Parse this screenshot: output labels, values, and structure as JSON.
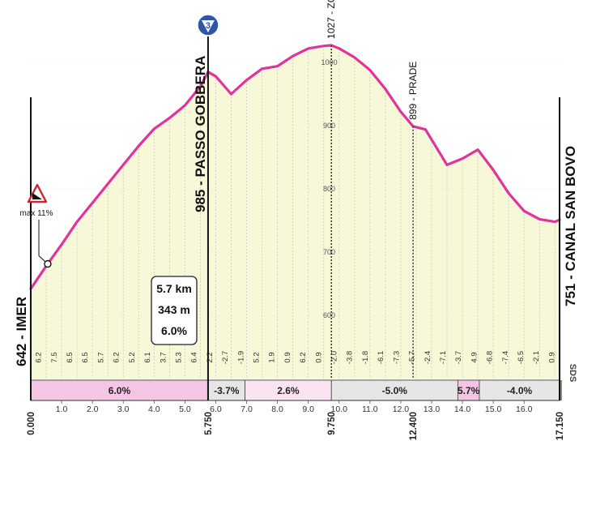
{
  "chart_data": {
    "type": "area",
    "xlabel": "",
    "ylabel": "",
    "xlim": [
      0,
      17.15
    ],
    "ylim": [
      500,
      1100
    ],
    "y_ticks": [
      600,
      700,
      800,
      900,
      1000
    ],
    "y_tick_labels": [
      "600",
      "700",
      "800",
      "900",
      "1000"
    ],
    "x_ticks": [
      1,
      2,
      3,
      4,
      5,
      6,
      7,
      8,
      9,
      10,
      11,
      12,
      13,
      14,
      15,
      16
    ],
    "x_tick_labels": [
      "1.0",
      "2.0",
      "3.0",
      "4.0",
      "5.0",
      "6.0",
      "7.0",
      "8.0",
      "9.0",
      "10.0",
      "11.0",
      "12.0",
      "13.0",
      "14.0",
      "15.0",
      "16.0"
    ],
    "x_key_labels": [
      {
        "x": 0,
        "label": "0.000"
      },
      {
        "x": 5.75,
        "label": "5.750"
      },
      {
        "x": 9.75,
        "label": "9.750"
      },
      {
        "x": 12.4,
        "label": "12.400"
      },
      {
        "x": 17.15,
        "label": "17.150"
      }
    ],
    "series": [
      {
        "x": [
          0,
          0.5,
          1,
          1.5,
          2,
          2.5,
          3,
          3.5,
          4,
          4.5,
          5,
          5.5,
          5.75,
          6,
          6.5,
          7,
          7.5,
          8,
          8.5,
          9,
          9.5,
          9.75,
          10,
          10.5,
          11,
          11.5,
          12,
          12.4,
          12.8,
          13,
          13.5,
          14,
          14.5,
          15,
          15.5,
          16,
          16.5,
          17,
          17.15
        ],
        "y": [
          642,
          678,
          712,
          748,
          778,
          808,
          838,
          868,
          895,
          912,
          932,
          962,
          985,
          978,
          950,
          972,
          990,
          994,
          1010,
          1022,
          1026,
          1027,
          1022,
          1008,
          988,
          958,
          922,
          899,
          894,
          878,
          838,
          848,
          862,
          830,
          793,
          765,
          752,
          748,
          751
        ]
      }
    ],
    "per_km_gradients": [
      "6.2",
      "7.5",
      "6.5",
      "6.5",
      "5.7",
      "6.2",
      "5.2",
      "6.1",
      "3.7",
      "5.3",
      "6.4",
      "2.2",
      "-2.7",
      "-1.9",
      "5.2",
      "1.9",
      "0.9",
      "6.2",
      "0.9",
      "-2.0",
      "-3.8",
      "-1.8",
      "-6.1",
      "-7.3",
      "-5.7",
      "-2.4",
      "-7.1",
      "-3.7",
      "4.9",
      "-6.8",
      "-7.4",
      "-6.5",
      "-2.1",
      "0.9"
    ],
    "segments": [
      {
        "from": 0,
        "to": 5.75,
        "label": "6.0%",
        "color": "#f4c6e3"
      },
      {
        "from": 5.75,
        "to": 6.95,
        "label": "-3.7%",
        "color": "#e6e6e6"
      },
      {
        "from": 6.95,
        "to": 9.75,
        "label": "2.6%",
        "color": "#fbe4f1"
      },
      {
        "from": 9.75,
        "to": 13.85,
        "label": "-5.0%",
        "color": "#e6e6e6"
      },
      {
        "from": 13.85,
        "to": 14.55,
        "label": "5.7%",
        "color": "#f4c6e3"
      },
      {
        "from": 14.55,
        "to": 17.15,
        "label": "-4.0%",
        "color": "#e6e6e6"
      }
    ],
    "waypoints": [
      {
        "x": 0,
        "elev": 642,
        "label": "642 - IMER",
        "style": "end"
      },
      {
        "x": 5.75,
        "elev": 985,
        "label": "985 - PASSO GOBBERA",
        "style": "main"
      },
      {
        "x": 9.75,
        "elev": 1027,
        "label": "1027 - ZORTEA",
        "style": "minor"
      },
      {
        "x": 12.4,
        "elev": 899,
        "label": "899 - PRADE",
        "style": "minor"
      },
      {
        "x": 17.15,
        "elev": 751,
        "label": "751 - CANAL SAN BOVO",
        "style": "end"
      }
    ],
    "climb_badge": {
      "number": "3"
    },
    "climb_stats": [
      "5.7 km",
      "343 m",
      "6.0%"
    ],
    "max_gradient": {
      "label": "max 11%",
      "x": 0.55
    },
    "colors": {
      "line": "#e0339b",
      "fill": "#f6f8d8",
      "grid": "#c8c8c8",
      "badge": "#2d56a8"
    },
    "watermark": "SDS"
  }
}
